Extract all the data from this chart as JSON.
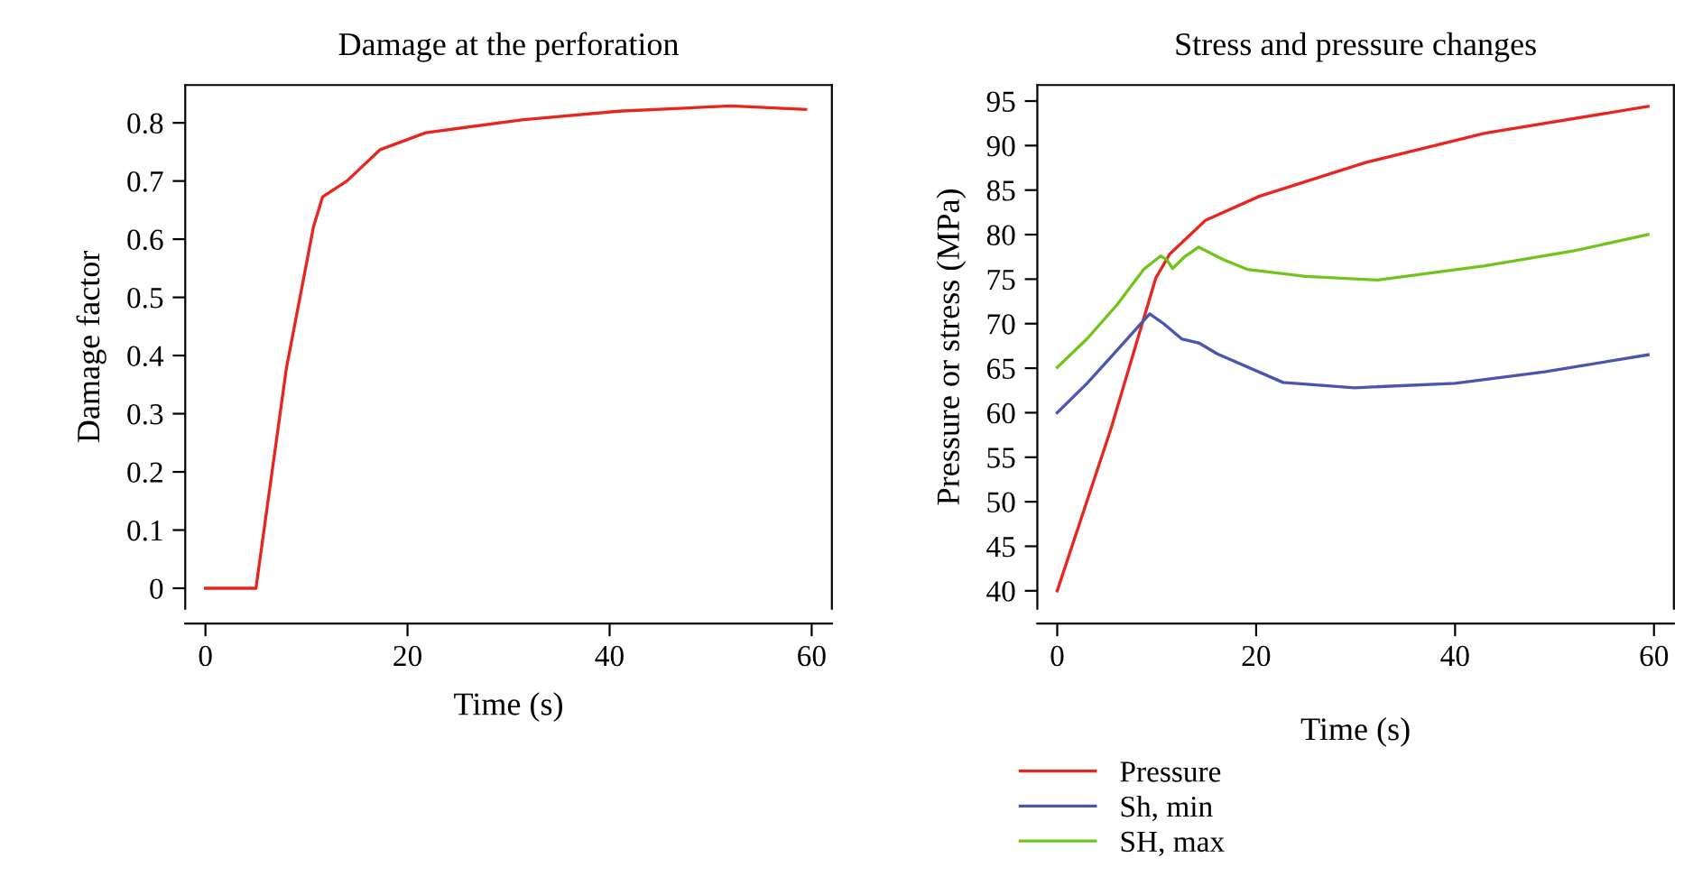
{
  "chart_data": [
    {
      "type": "line",
      "title": "Damage at the perforation",
      "xlabel": "Time (s)",
      "ylabel": "Damage factor",
      "xlim": [
        -2,
        62
      ],
      "ylim": [
        -0.035,
        0.865
      ],
      "xticks": [
        0,
        20,
        40,
        60
      ],
      "yticks": [
        0,
        0.1,
        0.2,
        0.3,
        0.4,
        0.5,
        0.6,
        0.7,
        0.8
      ],
      "grid": false,
      "legend": false,
      "series": [
        {
          "color": "#e8251f",
          "x": [
            0,
            5,
            8,
            10.7,
            11.6,
            14,
            17.3,
            21.8,
            31.3,
            40.9,
            52,
            59.4
          ],
          "values": [
            0,
            0,
            0.377,
            0.622,
            0.673,
            0.7,
            0.754,
            0.783,
            0.805,
            0.82,
            0.829,
            0.823
          ]
        }
      ]
    },
    {
      "type": "line",
      "title": "Stress and pressure changes",
      "xlabel": "Time (s)",
      "ylabel": "Pressure or stress (MPa)",
      "xlim": [
        -2,
        62
      ],
      "ylim": [
        38,
        96.8
      ],
      "xticks": [
        0,
        20,
        40,
        60
      ],
      "yticks": [
        40,
        45,
        50,
        55,
        60,
        65,
        70,
        75,
        80,
        85,
        90,
        95
      ],
      "grid": false,
      "legend": "bottom left",
      "series": [
        {
          "name": "Pressure",
          "color": "#e8251f",
          "x": [
            0,
            5.4,
            9.9,
            11.3,
            14.9,
            20.3,
            31,
            43,
            59.4
          ],
          "values": [
            40,
            58.2,
            75.1,
            77.8,
            81.6,
            84.3,
            88.1,
            91.4,
            94.4
          ]
        },
        {
          "name": "Sh, min",
          "color": "#4a55b0",
          "x": [
            0,
            3,
            6,
            9.3,
            10.7,
            12.5,
            14.3,
            16.1,
            22.7,
            29.9,
            40,
            49,
            59.4
          ],
          "values": [
            60,
            63.3,
            67,
            71.1,
            70,
            68.3,
            67.8,
            66.6,
            63.4,
            62.8,
            63.3,
            64.6,
            66.5
          ]
        },
        {
          "name": "SH, max",
          "color": "#72c41c",
          "x": [
            0,
            3,
            6,
            8.7,
            10.4,
            11,
            11.6,
            12.8,
            14.2,
            16.7,
            19.1,
            25,
            32.2,
            43,
            52,
            59.4
          ],
          "values": [
            65.1,
            68.3,
            72.1,
            76.1,
            77.6,
            77.2,
            76.2,
            77.5,
            78.6,
            77.2,
            76.1,
            75.3,
            74.9,
            76.5,
            78.2,
            80.0
          ]
        }
      ]
    }
  ]
}
